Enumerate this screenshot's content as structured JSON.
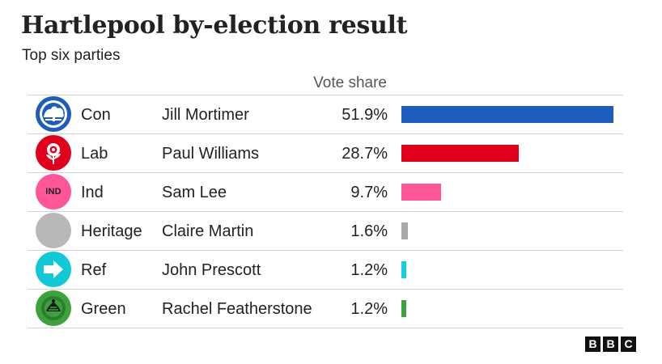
{
  "chart_data": {
    "type": "table",
    "title": "Hartlepool by-election result",
    "subtitle": "Top six parties",
    "value_header": "Vote share",
    "unit": "%",
    "xlim": [
      0,
      52
    ],
    "rows": [
      {
        "party": "Con",
        "candidate": "Jill Mortimer",
        "value": 51.9,
        "label": "51.9%",
        "color": "#1e5dbb",
        "logo": "conservative-tree-icon",
        "logo_bg": "#1e5dbb"
      },
      {
        "party": "Lab",
        "candidate": "Paul Williams",
        "value": 28.7,
        "label": "28.7%",
        "color": "#e0001b",
        "logo": "labour-rose-icon",
        "logo_bg": "#e0001b"
      },
      {
        "party": "Ind",
        "candidate": "Sam Lee",
        "value": 9.7,
        "label": "9.7%",
        "color": "#ff5697",
        "logo": "independent-icon",
        "logo_bg": "#ff5697",
        "logo_text": "IND"
      },
      {
        "party": "Heritage",
        "candidate": "Claire Martin",
        "value": 1.6,
        "label": "1.6%",
        "color": "#aaaaaa",
        "logo": "grey-circle-icon",
        "logo_bg": "#b8b8b8"
      },
      {
        "party": "Ref",
        "candidate": "John Prescott",
        "value": 1.2,
        "label": "1.2%",
        "color": "#12d0dd",
        "logo": "reform-arrow-icon",
        "logo_bg": "#12c7d6"
      },
      {
        "party": "Green",
        "candidate": "Rachel Featherstone",
        "value": 1.2,
        "label": "1.2%",
        "color": "#3ca23c",
        "logo": "green-party-icon",
        "logo_bg": "#3ca23c"
      }
    ]
  },
  "source_logo": {
    "letters": [
      "B",
      "B",
      "C"
    ]
  }
}
